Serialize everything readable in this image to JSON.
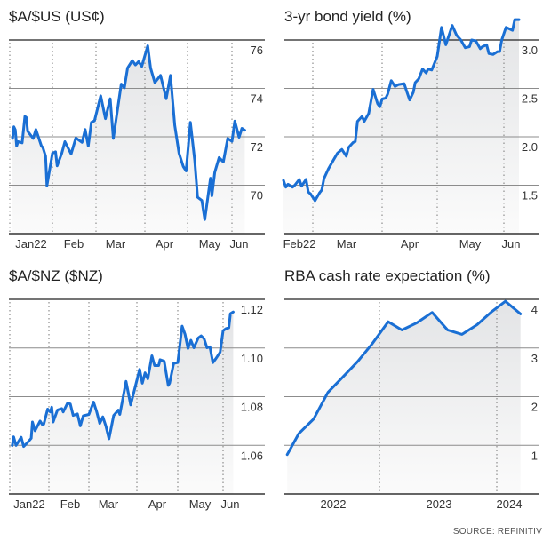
{
  "colors": {
    "line": "#1a6fd4",
    "fill_top": "#e3e4e6",
    "fill_bottom": "#fbfbfb"
  },
  "source": "SOURCE: REFINITIV",
  "chart_data": [
    {
      "type": "area",
      "title": "$A/$US (US¢)",
      "ylim": [
        68,
        76
      ],
      "yticks": [
        70,
        72,
        74,
        76
      ],
      "ytick_labels": [
        "70",
        "72",
        "74",
        "76"
      ],
      "xtick_labels": [
        "Jan22",
        "Feb",
        "Mar",
        "Apr",
        "May",
        "Jun"
      ],
      "grid": true,
      "points": [
        [
          "2022-01-03",
          71.93
        ],
        [
          "2022-01-04",
          72.41
        ],
        [
          "2022-01-05",
          72.29
        ],
        [
          "2022-01-06",
          71.62
        ],
        [
          "2022-01-07",
          71.8
        ],
        [
          "2022-01-10",
          71.75
        ],
        [
          "2022-01-12",
          72.84
        ],
        [
          "2022-01-13",
          72.8
        ],
        [
          "2022-01-14",
          72.23
        ],
        [
          "2022-01-18",
          71.93
        ],
        [
          "2022-01-20",
          72.3
        ],
        [
          "2022-01-24",
          71.62
        ],
        [
          "2022-01-25",
          71.56
        ],
        [
          "2022-01-27",
          71.2
        ],
        [
          "2022-01-28",
          69.98
        ],
        [
          "2022-02-01",
          71.32
        ],
        [
          "2022-02-03",
          71.38
        ],
        [
          "2022-02-04",
          70.8
        ],
        [
          "2022-02-07",
          71.32
        ],
        [
          "2022-02-09",
          71.8
        ],
        [
          "2022-02-13",
          71.29
        ],
        [
          "2022-02-16",
          71.95
        ],
        [
          "2022-02-20",
          71.77
        ],
        [
          "2022-02-22",
          72.3
        ],
        [
          "2022-02-24",
          71.62
        ],
        [
          "2022-02-26",
          72.6
        ],
        [
          "2022-02-28",
          72.66
        ],
        [
          "2022-03-04",
          73.69
        ],
        [
          "2022-03-07",
          72.75
        ],
        [
          "2022-03-10",
          73.57
        ],
        [
          "2022-03-12",
          71.93
        ],
        [
          "2022-03-17",
          74.18
        ],
        [
          "2022-03-19",
          74.02
        ],
        [
          "2022-03-21",
          74.84
        ],
        [
          "2022-03-24",
          75.15
        ],
        [
          "2022-03-26",
          74.97
        ],
        [
          "2022-03-28",
          75.11
        ],
        [
          "2022-03-30",
          74.91
        ],
        [
          "2022-04-03",
          75.76
        ],
        [
          "2022-04-05",
          74.84
        ],
        [
          "2022-04-08",
          74.24
        ],
        [
          "2022-04-12",
          74.54
        ],
        [
          "2022-04-16",
          73.57
        ],
        [
          "2022-04-19",
          74.54
        ],
        [
          "2022-04-22",
          72.47
        ],
        [
          "2022-04-25",
          71.32
        ],
        [
          "2022-04-28",
          70.77
        ],
        [
          "2022-04-30",
          70.59
        ],
        [
          "2022-05-03",
          72.6
        ],
        [
          "2022-05-06",
          71.02
        ],
        [
          "2022-05-08",
          69.5
        ],
        [
          "2022-05-11",
          69.37
        ],
        [
          "2022-05-13",
          68.58
        ],
        [
          "2022-05-17",
          70.29
        ],
        [
          "2022-05-18",
          69.56
        ],
        [
          "2022-05-20",
          70.53
        ],
        [
          "2022-05-23",
          71.14
        ],
        [
          "2022-05-26",
          70.96
        ],
        [
          "2022-05-29",
          71.93
        ],
        [
          "2022-06-01",
          71.81
        ],
        [
          "2022-06-03",
          72.65
        ],
        [
          "2022-06-06",
          71.98
        ],
        [
          "2022-06-08",
          72.35
        ],
        [
          "2022-06-10",
          72.27
        ]
      ]
    },
    {
      "type": "area",
      "title": "3-yr bond yield (%)",
      "ylim": [
        1.0,
        3.0
      ],
      "yticks": [
        1.5,
        2.0,
        2.5,
        3.0
      ],
      "ytick_labels": [
        "1.5",
        "2.0",
        "2.5",
        "3.0"
      ],
      "xtick_labels": [
        "Feb22",
        "Mar",
        "Apr",
        "May",
        "Jun"
      ],
      "grid": true,
      "points": [
        [
          "2022-02-16",
          1.55
        ],
        [
          "2022-02-17",
          1.48
        ],
        [
          "2022-02-18",
          1.51
        ],
        [
          "2022-02-20",
          1.48
        ],
        [
          "2022-02-21",
          1.5
        ],
        [
          "2022-02-23",
          1.56
        ],
        [
          "2022-02-24",
          1.49
        ],
        [
          "2022-02-26",
          1.56
        ],
        [
          "2022-02-27",
          1.43
        ],
        [
          "2022-02-28",
          1.41
        ],
        [
          "2022-03-02",
          1.34
        ],
        [
          "2022-03-04",
          1.42
        ],
        [
          "2022-03-05",
          1.45
        ],
        [
          "2022-03-06",
          1.57
        ],
        [
          "2022-03-08",
          1.67
        ],
        [
          "2022-03-10",
          1.75
        ],
        [
          "2022-03-12",
          1.83
        ],
        [
          "2022-03-14",
          1.87
        ],
        [
          "2022-03-16",
          1.8
        ],
        [
          "2022-03-17",
          1.89
        ],
        [
          "2022-03-19",
          1.94
        ],
        [
          "2022-03-20",
          1.95
        ],
        [
          "2022-03-21",
          2.16
        ],
        [
          "2022-03-23",
          2.21
        ],
        [
          "2022-03-24",
          2.16
        ],
        [
          "2022-03-26",
          2.24
        ],
        [
          "2022-03-28",
          2.49
        ],
        [
          "2022-03-30",
          2.34
        ],
        [
          "2022-03-31",
          2.31
        ],
        [
          "2022-04-01",
          2.39
        ],
        [
          "2022-04-03",
          2.4
        ],
        [
          "2022-04-04",
          2.44
        ],
        [
          "2022-04-06",
          2.58
        ],
        [
          "2022-04-08",
          2.52
        ],
        [
          "2022-04-10",
          2.54
        ],
        [
          "2022-04-13",
          2.55
        ],
        [
          "2022-04-14",
          2.49
        ],
        [
          "2022-04-16",
          2.38
        ],
        [
          "2022-04-18",
          2.46
        ],
        [
          "2022-04-19",
          2.56
        ],
        [
          "2022-04-21",
          2.6
        ],
        [
          "2022-04-23",
          2.7
        ],
        [
          "2022-04-25",
          2.66
        ],
        [
          "2022-04-26",
          2.7
        ],
        [
          "2022-04-28",
          2.69
        ],
        [
          "2022-05-01",
          2.83
        ],
        [
          "2022-05-03",
          3.13
        ],
        [
          "2022-05-05",
          2.95
        ],
        [
          "2022-05-08",
          3.15
        ],
        [
          "2022-05-10",
          3.05
        ],
        [
          "2022-05-12",
          3.0
        ],
        [
          "2022-05-14",
          2.92
        ],
        [
          "2022-05-16",
          2.93
        ],
        [
          "2022-05-17",
          3.0
        ],
        [
          "2022-05-19",
          2.99
        ],
        [
          "2022-05-21",
          2.91
        ],
        [
          "2022-05-22",
          2.93
        ],
        [
          "2022-05-24",
          2.95
        ],
        [
          "2022-05-25",
          2.86
        ],
        [
          "2022-05-27",
          2.85
        ],
        [
          "2022-05-29",
          2.88
        ],
        [
          "2022-05-30",
          2.88
        ],
        [
          "2022-05-31",
          3.0
        ],
        [
          "2022-06-02",
          3.13
        ],
        [
          "2022-06-04",
          3.11
        ],
        [
          "2022-06-05",
          3.1
        ],
        [
          "2022-06-06",
          3.21
        ],
        [
          "2022-06-08",
          3.21
        ]
      ]
    },
    {
      "type": "area",
      "title": "$A/$NZ ($NZ)",
      "ylim": [
        1.04,
        1.12
      ],
      "yticks": [
        1.06,
        1.08,
        1.1,
        1.12
      ],
      "ytick_labels": [
        "1.06",
        "1.08",
        "1.10",
        "1.12"
      ],
      "xtick_labels": [
        "Jan22",
        "Feb",
        "Mar",
        "Apr",
        "May",
        "Jun"
      ],
      "grid": true,
      "points": [
        [
          "2022-01-03",
          1.0599
        ],
        [
          "2022-01-04",
          1.0635
        ],
        [
          "2022-01-05",
          1.0617
        ],
        [
          "2022-01-06",
          1.06
        ],
        [
          "2022-01-10",
          1.0633
        ],
        [
          "2022-01-12",
          1.0595
        ],
        [
          "2022-01-15",
          1.0611
        ],
        [
          "2022-01-18",
          1.0629
        ],
        [
          "2022-01-19",
          1.0696
        ],
        [
          "2022-01-21",
          1.066
        ],
        [
          "2022-01-25",
          1.07
        ],
        [
          "2022-01-27",
          1.0684
        ],
        [
          "2022-01-28",
          1.0687
        ],
        [
          "2022-01-31",
          1.0749
        ],
        [
          "2022-02-02",
          1.0737
        ],
        [
          "2022-02-03",
          1.0757
        ],
        [
          "2022-02-04",
          1.0696
        ],
        [
          "2022-02-07",
          1.0745
        ],
        [
          "2022-02-10",
          1.0751
        ],
        [
          "2022-02-11",
          1.0737
        ],
        [
          "2022-02-14",
          1.0773
        ],
        [
          "2022-02-16",
          1.077
        ],
        [
          "2022-02-18",
          1.0723
        ],
        [
          "2022-02-21",
          1.0729
        ],
        [
          "2022-02-23",
          1.068
        ],
        [
          "2022-02-25",
          1.0721
        ],
        [
          "2022-03-01",
          1.0727
        ],
        [
          "2022-03-04",
          1.0778
        ],
        [
          "2022-03-06",
          1.0739
        ],
        [
          "2022-03-08",
          1.069
        ],
        [
          "2022-03-10",
          1.0717
        ],
        [
          "2022-03-12",
          1.0678
        ],
        [
          "2022-03-14",
          1.0627
        ],
        [
          "2022-03-17",
          1.0723
        ],
        [
          "2022-03-20",
          1.0745
        ],
        [
          "2022-03-21",
          1.0727
        ],
        [
          "2022-03-23",
          1.0794
        ],
        [
          "2022-03-25",
          1.0863
        ],
        [
          "2022-03-28",
          1.0766
        ],
        [
          "2022-03-31",
          1.0843
        ],
        [
          "2022-04-03",
          1.0912
        ],
        [
          "2022-04-05",
          1.0855
        ],
        [
          "2022-04-07",
          1.0898
        ],
        [
          "2022-04-09",
          1.0873
        ],
        [
          "2022-04-12",
          1.0968
        ],
        [
          "2022-04-14",
          1.0928
        ],
        [
          "2022-04-17",
          1.0928
        ],
        [
          "2022-04-18",
          1.0952
        ],
        [
          "2022-04-21",
          1.0946
        ],
        [
          "2022-04-24",
          1.0846
        ],
        [
          "2022-04-25",
          1.0855
        ],
        [
          "2022-04-28",
          1.0937
        ],
        [
          "2022-05-01",
          1.094
        ],
        [
          "2022-05-04",
          1.109
        ],
        [
          "2022-05-06",
          1.1056
        ],
        [
          "2022-05-08",
          1.0998
        ],
        [
          "2022-05-10",
          1.1032
        ],
        [
          "2022-05-12",
          1.1001
        ],
        [
          "2022-05-15",
          1.1041
        ],
        [
          "2022-05-17",
          1.105
        ],
        [
          "2022-05-19",
          1.1038
        ],
        [
          "2022-05-21",
          1.1001
        ],
        [
          "2022-05-23",
          1.1005
        ],
        [
          "2022-05-25",
          1.094
        ],
        [
          "2022-05-27",
          1.0956
        ],
        [
          "2022-05-30",
          1.0983
        ],
        [
          "2022-06-01",
          1.1071
        ],
        [
          "2022-06-03",
          1.108
        ],
        [
          "2022-06-05",
          1.1083
        ],
        [
          "2022-06-06",
          1.1141
        ],
        [
          "2022-06-08",
          1.1148
        ]
      ]
    },
    {
      "type": "area",
      "title": "RBA cash rate expectation (%)",
      "ylim": [
        0,
        4
      ],
      "yticks": [
        1,
        2,
        3,
        4
      ],
      "ytick_labels": [
        "1",
        "2",
        "3",
        "4"
      ],
      "xtick_labels": [
        "2022",
        "2023",
        "2024"
      ],
      "grid": true,
      "points": [
        [
          "2022-03-20",
          0.81
        ],
        [
          "2022-04-25",
          1.24
        ],
        [
          "2022-06-10",
          1.54
        ],
        [
          "2022-07-25",
          2.09
        ],
        [
          "2022-09-10",
          2.41
        ],
        [
          "2022-10-25",
          2.72
        ],
        [
          "2022-12-10",
          3.09
        ],
        [
          "2023-01-28",
          3.54
        ],
        [
          "2023-03-12",
          3.37
        ],
        [
          "2023-04-28",
          3.52
        ],
        [
          "2023-06-14",
          3.73
        ],
        [
          "2023-08-01",
          3.37
        ],
        [
          "2023-09-15",
          3.28
        ],
        [
          "2023-11-01",
          3.48
        ],
        [
          "2023-12-15",
          3.74
        ],
        [
          "2024-01-28",
          3.96
        ],
        [
          "2024-03-15",
          3.7
        ]
      ]
    }
  ]
}
